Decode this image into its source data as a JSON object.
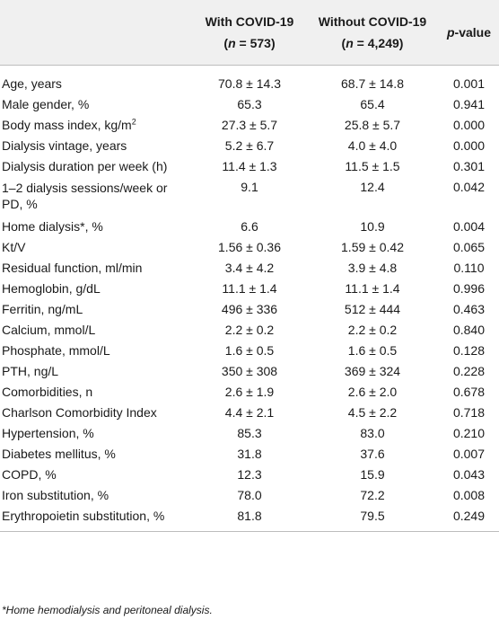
{
  "header": {
    "col0": "",
    "col1_line1": "With COVID-19",
    "col1_line2_prefix": "(",
    "col1_line2_n": "n",
    "col1_line2_rest": " = 573)",
    "col2_line1": "Without COVID-19",
    "col2_line2_prefix": "(",
    "col2_line2_n": "n",
    "col2_line2_rest": " = 4,249)",
    "col3_p": "p",
    "col3_rest": "-value"
  },
  "rows": [
    {
      "label": "Age, years",
      "with": "70.8 ± 14.3",
      "without": "68.7 ± 14.8",
      "p": "0.001"
    },
    {
      "label": "Male gender, %",
      "with": "65.3",
      "without": "65.4",
      "p": "0.941"
    },
    {
      "label": "Body mass index, kg/m",
      "sup": "2",
      "with": "27.3 ± 5.7",
      "without": "25.8 ± 5.7",
      "p": "0.000"
    },
    {
      "label": "Dialysis vintage, years",
      "with": "5.2 ± 6.7",
      "without": "4.0 ± 4.0",
      "p": "0.000"
    },
    {
      "label": "Dialysis duration per week (h)",
      "with": "11.4 ± 1.3",
      "without": "11.5 ± 1.5",
      "p": "0.301"
    },
    {
      "label_line1": "1–2 dialysis sessions/week or",
      "label_line2": "PD, %",
      "with": "9.1",
      "without": "12.4",
      "p": "0.042"
    },
    {
      "label": "Home dialysis*, %",
      "with": "6.6",
      "without": "10.9",
      "p": "0.004"
    },
    {
      "label": "Kt/V",
      "with": "1.56 ± 0.36",
      "without": "1.59 ± 0.42",
      "p": "0.065"
    },
    {
      "label": "Residual function, ml/min",
      "with": "3.4 ± 4.2",
      "without": "3.9 ± 4.8",
      "p": "0.110"
    },
    {
      "label": "Hemoglobin, g/dL",
      "with": "11.1 ± 1.4",
      "without": "11.1 ± 1.4",
      "p": "0.996"
    },
    {
      "label": "Ferritin, ng/mL",
      "with": "496 ± 336",
      "without": "512 ± 444",
      "p": "0.463"
    },
    {
      "label": "Calcium, mmol/L",
      "with": "2.2 ± 0.2",
      "without": "2.2 ± 0.2",
      "p": "0.840"
    },
    {
      "label": "Phosphate, mmol/L",
      "with": "1.6 ± 0.5",
      "without": "1.6 ± 0.5",
      "p": "0.128"
    },
    {
      "label": "PTH, ng/L",
      "with": "350 ± 308",
      "without": "369 ± 324",
      "p": "0.228"
    },
    {
      "label": "Comorbidities, n",
      "with": "2.6 ± 1.9",
      "without": "2.6 ± 2.0",
      "p": "0.678"
    },
    {
      "label": "Charlson Comorbidity Index",
      "with": "4.4 ± 2.1",
      "without": "4.5 ± 2.2",
      "p": "0.718"
    },
    {
      "label": "Hypertension, %",
      "with": "85.3",
      "without": "83.0",
      "p": "0.210"
    },
    {
      "label": "Diabetes mellitus, %",
      "with": "31.8",
      "without": "37.6",
      "p": "0.007"
    },
    {
      "label": "COPD, %",
      "with": "12.3",
      "without": "15.9",
      "p": "0.043"
    },
    {
      "label": "Iron substitution, %",
      "with": "78.0",
      "without": "72.2",
      "p": "0.008"
    },
    {
      "label": "Erythropoietin substitution, %",
      "with": "81.8",
      "without": "79.5",
      "p": "0.249"
    }
  ],
  "footnote": "*Home hemodialysis and peritoneal dialysis."
}
